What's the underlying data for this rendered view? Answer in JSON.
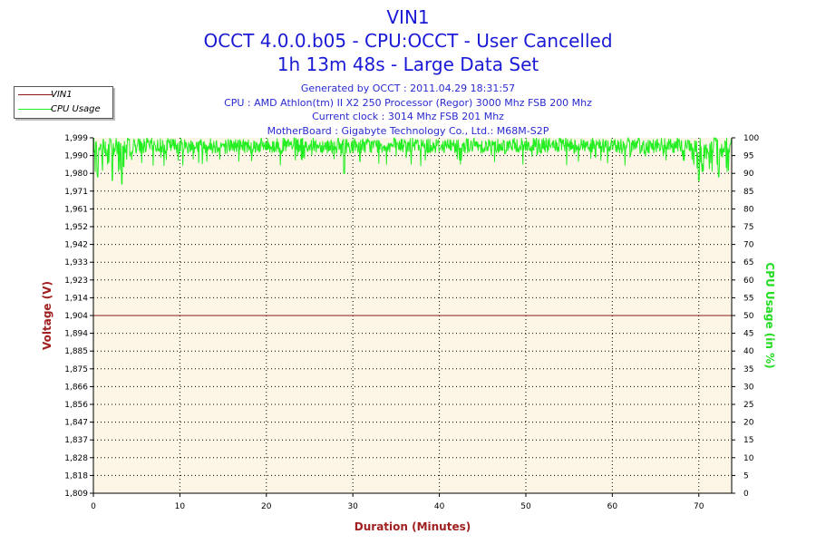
{
  "header": {
    "title": "VIN1",
    "subtitle1": "OCCT 4.0.0.b05 - CPU:OCCT - User Cancelled",
    "subtitle2": "1h 13m 48s - Large Data Set",
    "info": [
      "Generated by OCCT : 2011.04.29 18:31:57",
      "CPU : AMD Athlon(tm) II X2 250 Processor (Regor) 3000 Mhz FSB 200 Mhz",
      "Current clock : 3014 Mhz FSB 201 Mhz",
      "MotherBoard : Gigabyte Technology Co., Ltd.: M68M-S2P"
    ]
  },
  "legend": {
    "placement": "top-left",
    "items": [
      {
        "label": "VIN1",
        "color": "#8b1a1a"
      },
      {
        "label": "CPU Usage",
        "color": "#22ee22"
      }
    ]
  },
  "colors": {
    "plot_background": "#fdf6e6",
    "grid": "#000000",
    "voltage_axis_label": "#a02020",
    "cpu_axis_label": "#22dd22",
    "duration_axis_label": "#a02020"
  },
  "chart_data": {
    "type": "line",
    "xlabel": "Duration (Minutes)",
    "ylabel": "Voltage (V)",
    "y2label": "CPU Usage (in %)",
    "xlim": [
      0,
      73.8
    ],
    "x_ticks": [
      "0",
      "10",
      "20",
      "30",
      "40",
      "50",
      "60",
      "70"
    ],
    "ylim": [
      1.809,
      1.999
    ],
    "y_ticks": [
      "1,809",
      "1,818",
      "1,828",
      "1,837",
      "1,847",
      "1,856",
      "1,866",
      "1,875",
      "1,885",
      "1,894",
      "1,904",
      "1,914",
      "1,923",
      "1,933",
      "1,942",
      "1,952",
      "1,961",
      "1,971",
      "1,980",
      "1,990",
      "1,999"
    ],
    "y2lim": [
      0,
      100
    ],
    "y2_ticks": [
      "0",
      "5",
      "10",
      "15",
      "20",
      "25",
      "30",
      "35",
      "40",
      "45",
      "50",
      "55",
      "60",
      "65",
      "70",
      "75",
      "80",
      "85",
      "90",
      "95",
      "100"
    ],
    "grid": true,
    "series": [
      {
        "name": "VIN1",
        "axis": "left",
        "color": "#8b1a1a",
        "x": [
          0,
          73.8
        ],
        "values": [
          1.904,
          1.904
        ]
      },
      {
        "name": "CPU Usage",
        "axis": "right",
        "color": "#22ee22",
        "x": [
          0,
          73.8
        ],
        "values": [
          97,
          97
        ],
        "range_low": 92,
        "range_high": 100,
        "notable_dips": [
          [
            0.5,
            89
          ],
          [
            2.2,
            88
          ],
          [
            3.3,
            87
          ],
          [
            29.0,
            90
          ],
          [
            70.0,
            88
          ],
          [
            72.3,
            89
          ]
        ]
      }
    ]
  }
}
